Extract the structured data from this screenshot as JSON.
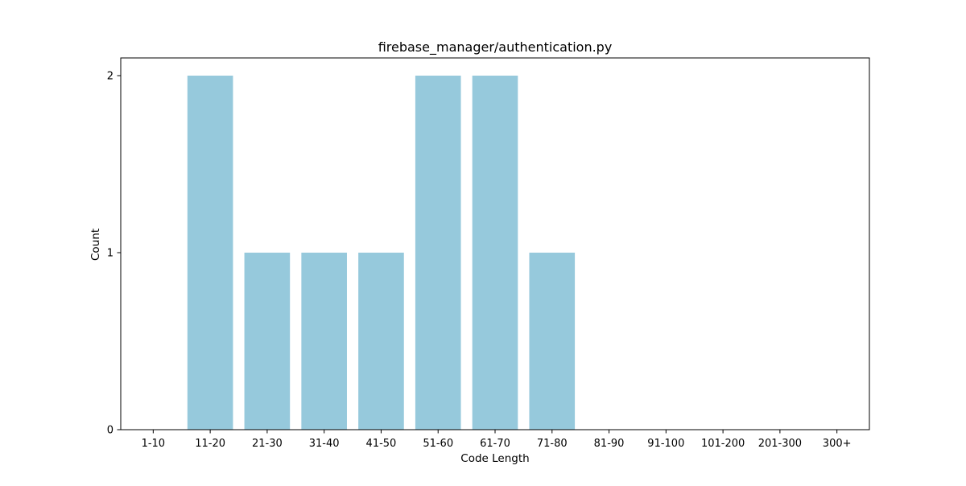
{
  "chart_data": {
    "type": "bar",
    "title": "firebase_manager/authentication.py",
    "xlabel": "Code Length",
    "ylabel": "Count",
    "categories": [
      "1-10",
      "11-20",
      "21-30",
      "31-40",
      "41-50",
      "51-60",
      "61-70",
      "71-80",
      "81-90",
      "91-100",
      "101-200",
      "201-300",
      "300+"
    ],
    "values": [
      0,
      2,
      1,
      1,
      1,
      2,
      2,
      1,
      0,
      0,
      0,
      0,
      0
    ],
    "ylim": [
      0,
      2.1
    ],
    "yticks": [
      0,
      1,
      2
    ],
    "grid": false,
    "legend": "none",
    "bar_color": "#96c9dc"
  }
}
